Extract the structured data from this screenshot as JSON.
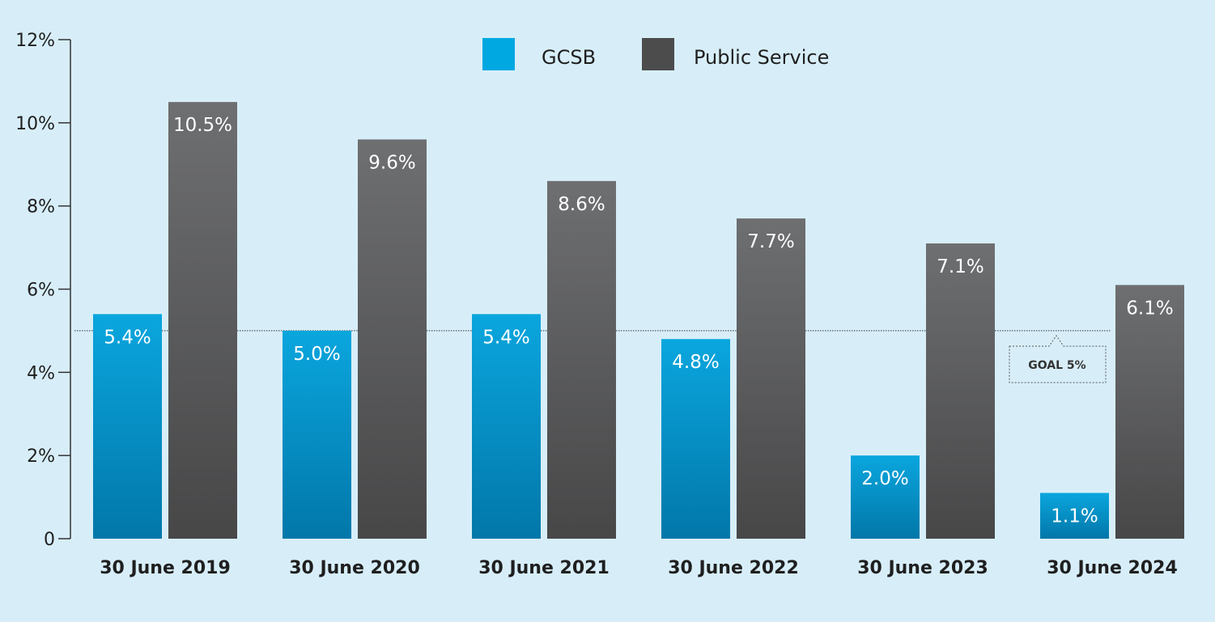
{
  "chart_data": {
    "type": "bar",
    "categories": [
      "30 June 2019",
      "30 June 2020",
      "30 June 2021",
      "30 June 2022",
      "30 June 2023",
      "30 June 2024"
    ],
    "series": [
      {
        "name": "GCSB",
        "values": [
          5.4,
          5.0,
          5.4,
          4.8,
          2.0,
          1.1
        ],
        "labels": [
          "5.4%",
          "5.0%",
          "5.4%",
          "4.8%",
          "2.0%",
          "1.1%"
        ],
        "color_top": "#0aa6de",
        "color_bottom": "#0277a9"
      },
      {
        "name": "Public Service",
        "values": [
          10.5,
          9.6,
          8.6,
          7.7,
          7.1,
          6.1
        ],
        "labels": [
          "10.5%",
          "9.6%",
          "8.6%",
          "7.7%",
          "7.1%",
          "6.1%"
        ],
        "color_top": "#6e6f71",
        "color_bottom": "#474748"
      }
    ],
    "ylim": [
      0,
      12
    ],
    "yticks": [
      0,
      2,
      4,
      6,
      8,
      10,
      12
    ],
    "ytick_labels": [
      "0",
      "2%",
      "4%",
      "6%",
      "8%",
      "10%",
      "12%"
    ],
    "goal": {
      "value": 5,
      "label": "GOAL 5%"
    },
    "legend_position": "top-center",
    "title": "",
    "xlabel": "",
    "ylabel": ""
  },
  "colors": {
    "background": "#d7eef9",
    "axis": "#333333",
    "legend_gcsb": "#00a8e1",
    "legend_public_service": "#4c4c4d"
  }
}
